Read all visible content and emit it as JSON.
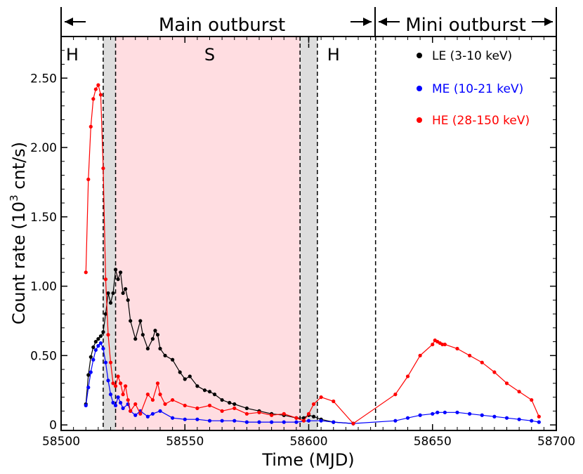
{
  "chart_data": {
    "type": "line",
    "xlabel": "Time (MJD)",
    "ylabel_main": "Count rate (10",
    "ylabel_sup": "3",
    "ylabel_tail": " cnt/s)",
    "xlim": [
      58500,
      58700
    ],
    "ylim": [
      -0.04,
      2.8
    ],
    "x_ticks": [
      58500,
      58550,
      58600,
      58650,
      58700
    ],
    "x_tick_labels": [
      "58500",
      "58550",
      "58600",
      "58650",
      "58700"
    ],
    "y_ticks": [
      0,
      0.5,
      1.0,
      1.5,
      2.0,
      2.5
    ],
    "y_tick_labels": [
      "0",
      "0.50",
      "1.00",
      "1.50",
      "2.00",
      "2.50"
    ],
    "grid": false,
    "legend_placement": "top-right",
    "top_band": {
      "main_label": "Main outburst",
      "mini_label": "Mini outburst",
      "main_range": [
        58500,
        58627
      ],
      "mini_range": [
        58627,
        58700
      ]
    },
    "state_labels": [
      {
        "text": "H",
        "x": 58504.5
      },
      {
        "text": "S",
        "x": 58560
      },
      {
        "text": "H",
        "x": 58610
      }
    ],
    "shaded_regions": [
      {
        "x0": 58517,
        "x1": 58522,
        "color": "#dddddd"
      },
      {
        "x0": 58522,
        "x1": 58596.5,
        "color": "#ffdde1"
      },
      {
        "x0": 58596.5,
        "x1": 58603.5,
        "color": "#dddddd"
      }
    ],
    "dashed_lines": [
      58517,
      58522,
      58596.5,
      58603.5,
      58627
    ],
    "short_dashed_line": 58600,
    "series": [
      {
        "name": "LE (3-10 keV)",
        "color": "#000000",
        "x": [
          58510,
          58511,
          58512,
          58513,
          58514,
          58515,
          58516,
          58517,
          58518,
          58519,
          58520,
          58521,
          58522,
          58523,
          58524,
          58525,
          58526,
          58527,
          58528,
          58530,
          58532,
          58533,
          58535,
          58537,
          58538,
          58539,
          58540,
          58542,
          58545,
          58548,
          58550,
          58552,
          58555,
          58558,
          58560,
          58562,
          58565,
          58568,
          58570,
          58575,
          58580,
          58585,
          58590,
          58595,
          58598,
          58600,
          58602,
          58605,
          58610,
          58618
        ],
        "y": [
          0.15,
          0.36,
          0.49,
          0.56,
          0.6,
          0.62,
          0.64,
          0.67,
          0.8,
          0.95,
          0.88,
          0.95,
          1.12,
          1.05,
          1.1,
          0.95,
          0.98,
          0.9,
          0.75,
          0.62,
          0.75,
          0.65,
          0.55,
          0.62,
          0.68,
          0.65,
          0.55,
          0.5,
          0.47,
          0.38,
          0.33,
          0.35,
          0.28,
          0.25,
          0.24,
          0.22,
          0.18,
          0.16,
          0.15,
          0.12,
          0.1,
          0.08,
          0.07,
          0.05,
          0.05,
          0.07,
          0.06,
          0.04,
          0.02,
          0.01
        ]
      },
      {
        "name": "ME (10-21 keV)",
        "color": "#0000ff",
        "x": [
          58510,
          58511,
          58512,
          58513,
          58514,
          58515,
          58516,
          58517,
          58518,
          58519,
          58520,
          58521,
          58522,
          58523,
          58524,
          58525,
          58527,
          58528,
          58530,
          58532,
          58535,
          58537,
          58540,
          58545,
          58550,
          58555,
          58560,
          58565,
          58570,
          58575,
          58580,
          58585,
          58590,
          58595,
          58600,
          58605,
          58610,
          58618,
          58635,
          58640,
          58645,
          58650,
          58652,
          58655,
          58660,
          58665,
          58670,
          58675,
          58680,
          58685,
          58690,
          58693
        ],
        "y": [
          0.14,
          0.27,
          0.38,
          0.47,
          0.54,
          0.57,
          0.59,
          0.55,
          0.45,
          0.32,
          0.22,
          0.16,
          0.14,
          0.2,
          0.16,
          0.12,
          0.15,
          0.1,
          0.07,
          0.1,
          0.06,
          0.08,
          0.1,
          0.05,
          0.04,
          0.04,
          0.03,
          0.03,
          0.03,
          0.02,
          0.02,
          0.02,
          0.02,
          0.02,
          0.03,
          0.03,
          0.02,
          0.01,
          0.03,
          0.05,
          0.07,
          0.08,
          0.09,
          0.09,
          0.09,
          0.08,
          0.07,
          0.06,
          0.05,
          0.04,
          0.03,
          0.02
        ]
      },
      {
        "name": "HE (28-150 keV)",
        "color": "#ff0000",
        "x": [
          58510,
          58511,
          58512,
          58513,
          58514,
          58515,
          58516,
          58517,
          58518,
          58519,
          58520,
          58521,
          58522,
          58523,
          58524,
          58525,
          58526,
          58527,
          58528,
          58530,
          58532,
          58535,
          58537,
          58539,
          58540,
          58542,
          58545,
          58550,
          58555,
          58560,
          58565,
          58570,
          58575,
          58580,
          58585,
          58590,
          58595,
          58598,
          58600,
          58602,
          58605,
          58610,
          58618,
          58635,
          58640,
          58645,
          58650,
          58651,
          58652,
          58653,
          58654,
          58655,
          58660,
          58665,
          58670,
          58675,
          58680,
          58685,
          58690,
          58693
        ],
        "y": [
          1.1,
          1.77,
          2.15,
          2.35,
          2.42,
          2.45,
          2.38,
          1.85,
          1.05,
          0.65,
          0.45,
          0.3,
          0.28,
          0.35,
          0.3,
          0.22,
          0.28,
          0.18,
          0.1,
          0.15,
          0.08,
          0.22,
          0.18,
          0.3,
          0.22,
          0.15,
          0.18,
          0.14,
          0.12,
          0.14,
          0.1,
          0.12,
          0.08,
          0.09,
          0.07,
          0.08,
          0.05,
          0.03,
          0.08,
          0.15,
          0.2,
          0.17,
          0.01,
          0.22,
          0.35,
          0.5,
          0.58,
          0.61,
          0.6,
          0.59,
          0.58,
          0.58,
          0.55,
          0.5,
          0.45,
          0.38,
          0.3,
          0.24,
          0.18,
          0.06
        ]
      }
    ]
  }
}
